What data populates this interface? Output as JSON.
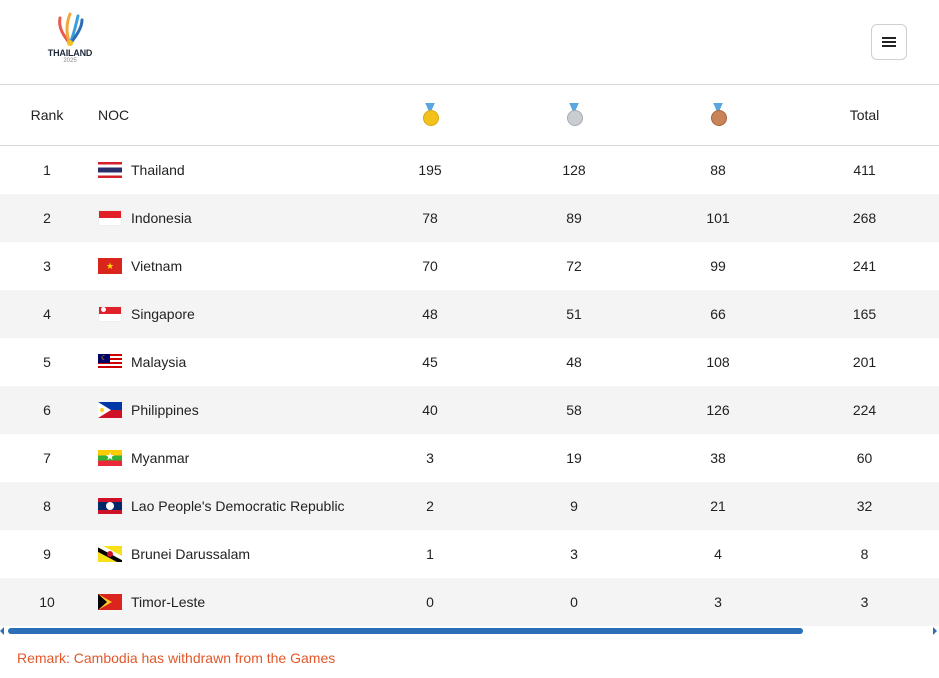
{
  "logo": {
    "text": "THAILAND",
    "year": "2025"
  },
  "table": {
    "headers": {
      "rank": "Rank",
      "noc": "NOC",
      "gold_icon": "gold-medal-icon",
      "silver_icon": "silver-medal-icon",
      "bronze_icon": "bronze-medal-icon",
      "total": "Total"
    },
    "rows": [
      {
        "rank": "1",
        "noc": "Thailand",
        "gold": "195",
        "silver": "128",
        "bronze": "88",
        "total": "411"
      },
      {
        "rank": "2",
        "noc": "Indonesia",
        "gold": "78",
        "silver": "89",
        "bronze": "101",
        "total": "268"
      },
      {
        "rank": "3",
        "noc": "Vietnam",
        "gold": "70",
        "silver": "72",
        "bronze": "99",
        "total": "241"
      },
      {
        "rank": "4",
        "noc": "Singapore",
        "gold": "48",
        "silver": "51",
        "bronze": "66",
        "total": "165"
      },
      {
        "rank": "5",
        "noc": "Malaysia",
        "gold": "45",
        "silver": "48",
        "bronze": "108",
        "total": "201"
      },
      {
        "rank": "6",
        "noc": "Philippines",
        "gold": "40",
        "silver": "58",
        "bronze": "126",
        "total": "224"
      },
      {
        "rank": "7",
        "noc": "Myanmar",
        "gold": "3",
        "silver": "19",
        "bronze": "38",
        "total": "60"
      },
      {
        "rank": "8",
        "noc": "Lao People's Democratic Republic",
        "gold": "2",
        "silver": "9",
        "bronze": "21",
        "total": "32"
      },
      {
        "rank": "9",
        "noc": "Brunei Darussalam",
        "gold": "1",
        "silver": "3",
        "bronze": "4",
        "total": "8"
      },
      {
        "rank": "10",
        "noc": "Timor-Leste",
        "gold": "0",
        "silver": "0",
        "bronze": "3",
        "total": "3"
      }
    ]
  },
  "remark": "Remark: Cambodia has withdrawn from the Games",
  "colors": {
    "gold": "#f2c21b",
    "silver": "#c9ccd1",
    "bronze": "#c98358",
    "remark": "#e0582a",
    "scrollbar": "#2a6fb8"
  }
}
